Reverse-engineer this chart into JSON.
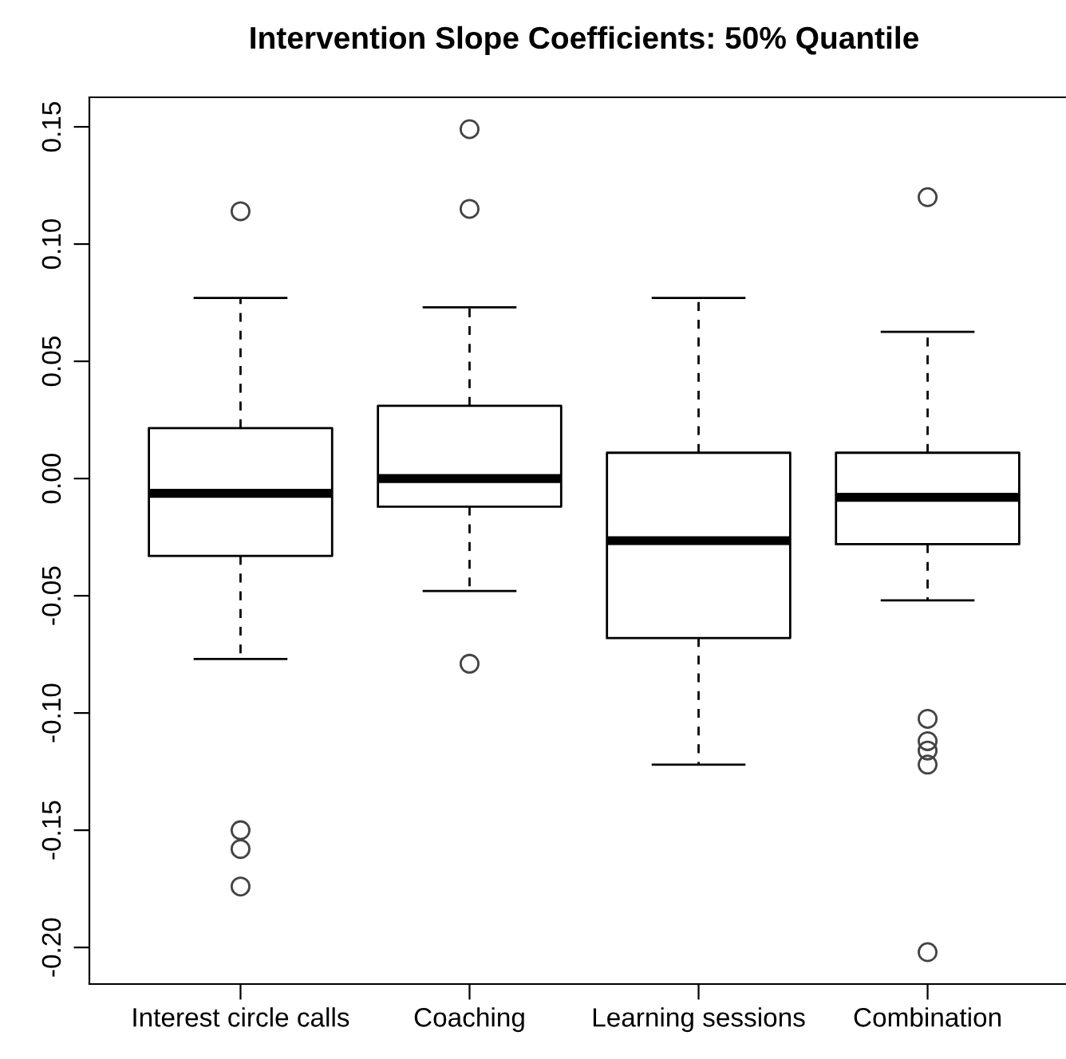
{
  "chart_data": {
    "type": "box",
    "title": "Intervention Slope Coefficients: 50% Quantile",
    "categories": [
      "Interest circle calls",
      "Coaching",
      "Learning sessions",
      "Combination"
    ],
    "boxes": [
      {
        "low": -0.077,
        "q1": -0.033,
        "median": -0.0063,
        "q3": 0.0215,
        "high": 0.077,
        "outliers": [
          0.114,
          -0.15,
          -0.158,
          -0.174
        ]
      },
      {
        "low": -0.048,
        "q1": -0.012,
        "median": 0.0,
        "q3": 0.031,
        "high": 0.073,
        "outliers": [
          0.149,
          0.115,
          -0.079
        ]
      },
      {
        "low": -0.122,
        "q1": -0.068,
        "median": -0.0265,
        "q3": 0.011,
        "high": 0.077
      },
      {
        "low": -0.052,
        "q1": -0.028,
        "median": -0.008,
        "q3": 0.011,
        "high": 0.0626,
        "outliers": [
          0.12,
          -0.1025,
          -0.112,
          -0.116,
          -0.122,
          -0.202
        ]
      }
    ],
    "ylim": [
      -0.2156,
      0.1626
    ],
    "yticks": [
      {
        "value": -0.2,
        "label": "-0.20"
      },
      {
        "value": -0.15,
        "label": "-0.15"
      },
      {
        "value": -0.1,
        "label": "-0.10"
      },
      {
        "value": -0.05,
        "label": "-0.05"
      },
      {
        "value": 0,
        "label": "0.00"
      },
      {
        "value": 0.05,
        "label": "0.05"
      },
      {
        "value": 0.1,
        "label": "0.10"
      },
      {
        "value": 0.15,
        "label": "0.15"
      }
    ],
    "grid": false
  }
}
